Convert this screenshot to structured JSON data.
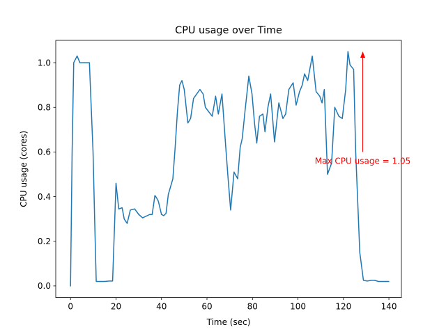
{
  "chart_data": {
    "type": "line",
    "title": "CPU usage over Time",
    "xlabel": "Time (sec)",
    "ylabel": "CPU usage (cores)",
    "xlim": [
      -6.5,
      145.5
    ],
    "ylim": [
      -0.052,
      1.1
    ],
    "xticks": [
      0,
      20,
      40,
      60,
      80,
      100,
      120,
      140
    ],
    "yticks": [
      0.0,
      0.2,
      0.4,
      0.6,
      0.8,
      1.0
    ],
    "xtick_labels": [
      "0",
      "20",
      "40",
      "60",
      "80",
      "100",
      "120",
      "140"
    ],
    "ytick_labels": [
      "0.0",
      "0.2",
      "0.4",
      "0.6",
      "0.8",
      "1.0"
    ],
    "grid": false,
    "color": "#1f77b4",
    "series": [
      {
        "x": [
          0,
          0.7,
          1.4,
          2.9,
          4.1,
          6,
          7.5,
          8.3,
          9.9,
          10.6,
          11.3,
          13,
          15,
          17,
          18.5,
          20,
          21.2,
          22.7,
          23.6,
          24.9,
          26.3,
          28.2,
          30,
          31.7,
          34.8,
          35.9,
          37.1,
          37.8,
          38.6,
          40,
          41,
          42,
          43,
          45,
          46,
          47,
          48,
          49,
          50,
          51.6,
          52.8,
          54.1,
          56.9,
          58.3,
          59.3,
          62.3,
          63.8,
          65,
          66.6,
          68.2,
          69.3,
          70.4,
          71.9,
          73.5,
          74.6,
          75.5,
          76.8,
          78.4,
          79.8,
          80.9,
          81.9,
          83.1,
          84.6,
          85.5,
          86.8,
          88,
          89.7,
          91.6,
          93.4,
          94.6,
          96,
          97.9,
          99.2,
          100.7,
          101.9,
          102.9,
          104.3,
          106.3,
          108,
          109.6,
          110.6,
          111.6,
          113,
          114.8,
          116.2,
          118,
          119.5,
          121,
          122,
          122.9,
          124.5,
          125.4,
          127.2,
          128.8,
          130.5,
          132.2,
          133.8,
          135.4,
          136.6,
          138.1,
          139.9
        ],
        "y": [
          0.0,
          0.6,
          1.0,
          1.03,
          1.0,
          1.0,
          1.0,
          1.0,
          0.6,
          0.3,
          0.02,
          0.02,
          0.02,
          0.022,
          0.022,
          0.46,
          0.345,
          0.35,
          0.3,
          0.28,
          0.34,
          0.345,
          0.32,
          0.305,
          0.32,
          0.32,
          0.405,
          0.395,
          0.38,
          0.32,
          0.315,
          0.325,
          0.41,
          0.48,
          0.62,
          0.78,
          0.9,
          0.92,
          0.88,
          0.73,
          0.75,
          0.84,
          0.88,
          0.86,
          0.8,
          0.76,
          0.85,
          0.77,
          0.86,
          0.63,
          0.48,
          0.34,
          0.51,
          0.48,
          0.62,
          0.66,
          0.79,
          0.94,
          0.86,
          0.73,
          0.64,
          0.76,
          0.77,
          0.69,
          0.8,
          0.86,
          0.645,
          0.82,
          0.75,
          0.77,
          0.88,
          0.91,
          0.81,
          0.87,
          0.9,
          0.95,
          0.92,
          1.03,
          0.87,
          0.85,
          0.82,
          0.88,
          0.5,
          0.55,
          0.8,
          0.76,
          0.75,
          0.88,
          1.05,
          0.99,
          0.97,
          0.6,
          0.15,
          0.025,
          0.022,
          0.025,
          0.025,
          0.02,
          0.02,
          0.02,
          0.02
        ]
      }
    ],
    "annotations": [
      {
        "text": "Max CPU usage = 1.05",
        "xy": [
          128.5,
          1.05
        ],
        "xytext": [
          128.5,
          0.6
        ],
        "color": "#ff0000",
        "arrow": true
      }
    ]
  }
}
